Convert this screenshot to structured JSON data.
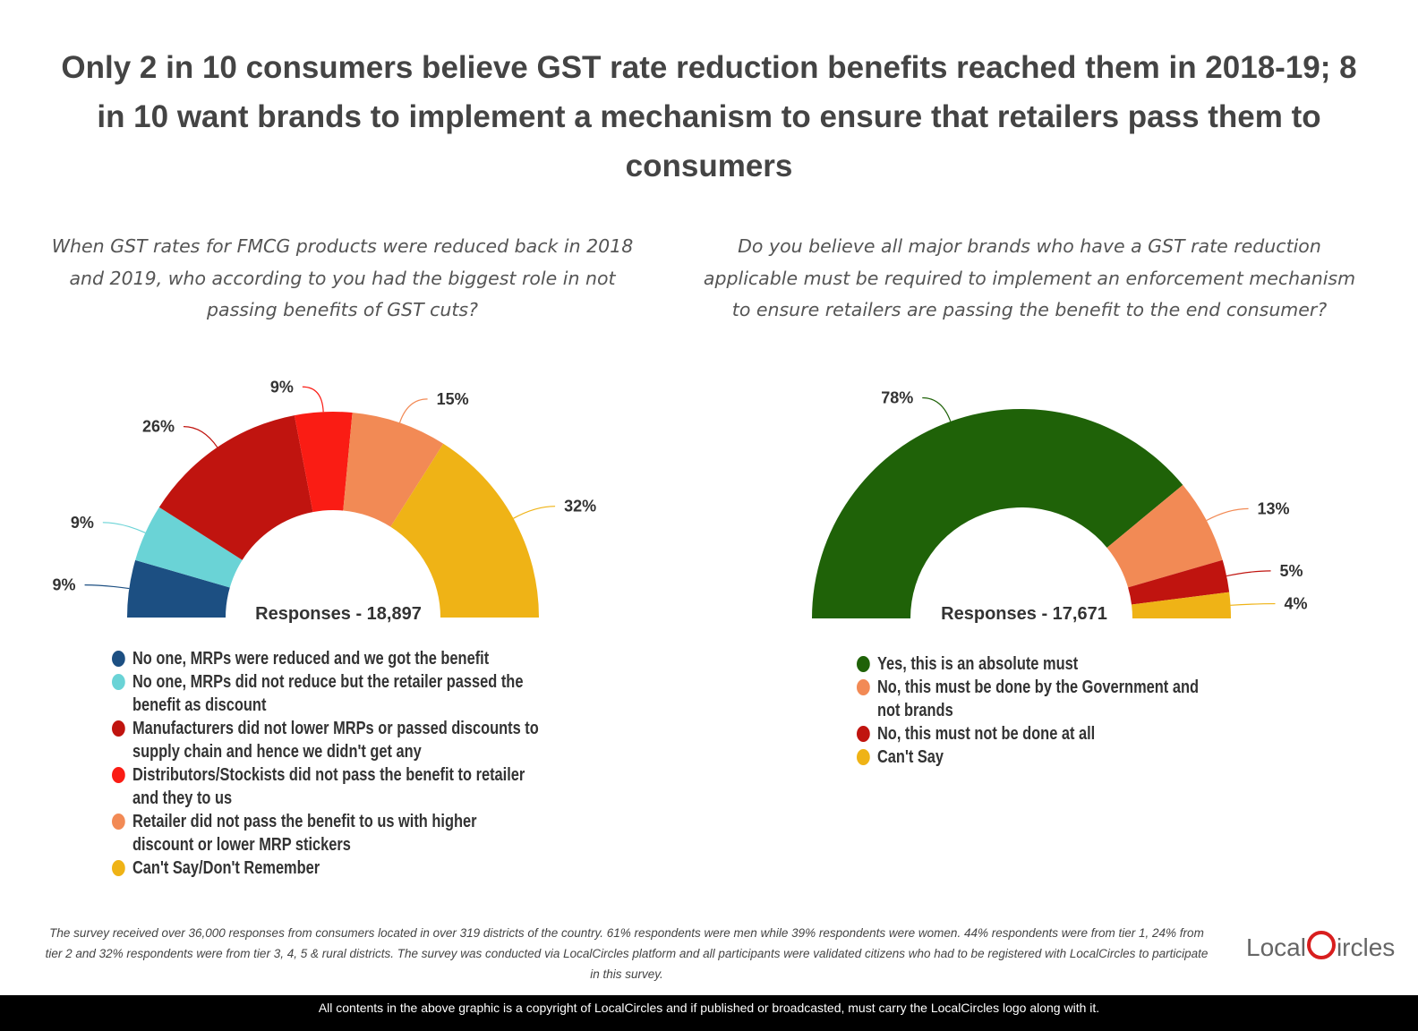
{
  "title": "Only 2 in 10 consumers believe GST rate reduction benefits reached them in 2018-19; 8 in 10 want brands to implement a mechanism to ensure that retailers pass them to consumers",
  "chart_data": [
    {
      "type": "pie",
      "subtitle": "When GST rates for FMCG products were reduced back in 2018 and 2019, who according to you had the biggest role in not passing benefits of GST cuts?",
      "annotation": "Responses - 18,897",
      "categories": [
        "No one, MRPs were reduced and we got the benefit",
        "No one, MRPs did not reduce but the retailer passed the benefit as discount",
        "Manufacturers did not lower MRPs or passed discounts to supply chain and hence we didn't get any",
        "Distributors/Stockists did not pass the benefit to retailer and they to us",
        "Retailer did not pass the benefit to us with higher discount or lower MRP stickers",
        "Can't Say/Don't Remember"
      ],
      "values": [
        9,
        9,
        26,
        9,
        15,
        32
      ],
      "value_labels": [
        "9%",
        "9%",
        "26%",
        "9%",
        "15%",
        "32%"
      ],
      "colors": [
        "#1c4f82",
        "#6ad3d6",
        "#c0140f",
        "#fa1c14",
        "#f28a55",
        "#efb316"
      ]
    },
    {
      "type": "pie",
      "subtitle": "Do you believe all major brands who have a GST rate reduction applicable must be required to implement an enforcement mechanism to ensure retailers are passing the benefit to the end consumer?",
      "annotation": "Responses - 17,671",
      "categories": [
        "Yes, this is an absolute must",
        "No, this must be done by the Government and not brands",
        "No, this must not be done at all",
        "Can't Say"
      ],
      "values": [
        78,
        13,
        5,
        4
      ],
      "value_labels": [
        "78%",
        "13%",
        "5%",
        "4%"
      ],
      "colors": [
        "#1f6208",
        "#f28a55",
        "#c0140f",
        "#efb316"
      ]
    }
  ],
  "footnote": "The survey received over 36,000 responses from consumers located in over 319 districts of the country. 61% respondents were men while 39% respondents were women. 44% respondents were from tier 1, 24% from tier 2 and 32% respondents were from tier 3, 4, 5 & rural districts. The survey was conducted via LocalCircles platform and all participants were validated citizens who had to be registered with LocalCircles to participate in this survey.",
  "logo": {
    "left": "Local",
    "right": "ircles"
  },
  "copyright": "All contents in the above graphic is a copyright of LocalCircles and if published or broadcasted, must carry the LocalCircles logo along with it."
}
